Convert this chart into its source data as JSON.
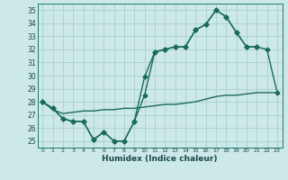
{
  "xlabel": "Humidex (Indice chaleur)",
  "bg_color": "#cce8e8",
  "grid_color": "#a8d0cc",
  "line_color": "#1a6b5a",
  "xlim": [
    -0.5,
    23.5
  ],
  "ylim": [
    24.5,
    35.5
  ],
  "yticks": [
    25,
    26,
    27,
    28,
    29,
    30,
    31,
    32,
    33,
    34,
    35
  ],
  "xticks": [
    0,
    1,
    2,
    3,
    4,
    5,
    6,
    7,
    8,
    9,
    10,
    11,
    12,
    13,
    14,
    15,
    16,
    17,
    18,
    19,
    20,
    21,
    22,
    23
  ],
  "series1_x": [
    0,
    1,
    2,
    3,
    4,
    5,
    6,
    7,
    8,
    9,
    10,
    11,
    12,
    13,
    14,
    15,
    16,
    17,
    18,
    19,
    20,
    21
  ],
  "series1_y": [
    28.0,
    27.5,
    26.7,
    26.5,
    26.5,
    25.1,
    25.7,
    25.0,
    25.0,
    26.5,
    28.5,
    31.8,
    32.0,
    32.2,
    32.2,
    33.5,
    33.9,
    35.0,
    34.5,
    33.3,
    32.2,
    32.2
  ],
  "series2_x": [
    0,
    1,
    2,
    3,
    4,
    5,
    6,
    7,
    8,
    9,
    10,
    11,
    12,
    13,
    14,
    15,
    16,
    17,
    18,
    19,
    20,
    21,
    22,
    23
  ],
  "series2_y": [
    28.0,
    27.5,
    26.7,
    26.5,
    26.5,
    25.1,
    25.7,
    25.0,
    25.0,
    26.5,
    29.9,
    31.8,
    32.0,
    32.2,
    32.2,
    33.5,
    33.9,
    35.0,
    34.5,
    33.3,
    32.2,
    32.2,
    32.0,
    28.7
  ],
  "series3_x": [
    0,
    1,
    2,
    3,
    4,
    5,
    6,
    7,
    8,
    9,
    10,
    11,
    12,
    13,
    14,
    15,
    16,
    17,
    18,
    19,
    20,
    21,
    22,
    23
  ],
  "series3_y": [
    28.0,
    27.4,
    27.1,
    27.2,
    27.3,
    27.3,
    27.4,
    27.4,
    27.5,
    27.5,
    27.6,
    27.7,
    27.8,
    27.8,
    27.9,
    28.0,
    28.2,
    28.4,
    28.5,
    28.5,
    28.6,
    28.7,
    28.7,
    28.7
  ],
  "marker_size": 2.5,
  "line_width": 1.0
}
